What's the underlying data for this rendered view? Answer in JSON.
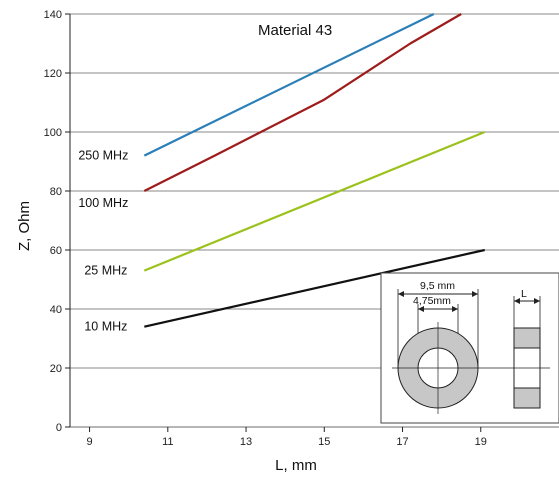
{
  "chart_data": {
    "type": "line",
    "title": "Material 43",
    "xlabel": "L, mm",
    "ylabel": "Z, Ohm",
    "xlim": [
      8.5,
      21
    ],
    "ylim": [
      0,
      140
    ],
    "x_ticks": [
      9,
      11,
      13,
      15,
      17,
      19
    ],
    "y_ticks": [
      0,
      20,
      40,
      60,
      80,
      100,
      120,
      140
    ],
    "grid": "horizontal",
    "series": [
      {
        "name": "250 MHz",
        "color": "#2a7fb8",
        "points": [
          [
            10.4,
            92
          ],
          [
            17.8,
            140
          ]
        ]
      },
      {
        "name": "100 MHz",
        "color": "#9e1c1c",
        "points": [
          [
            10.4,
            80
          ],
          [
            12.2,
            92
          ],
          [
            15,
            111
          ],
          [
            17.2,
            130
          ],
          [
            18.5,
            140
          ]
        ]
      },
      {
        "name": "25 MHz",
        "color": "#9bc21c",
        "points": [
          [
            10.4,
            53
          ],
          [
            19.1,
            100
          ]
        ]
      },
      {
        "name": "10 MHz",
        "color": "#111111",
        "points": [
          [
            10.4,
            34
          ],
          [
            19.1,
            60
          ]
        ]
      }
    ],
    "inset": {
      "outer_diameter_label": "9,5 mm",
      "inner_diameter_label": "4,75mm",
      "length_label": "L"
    }
  }
}
